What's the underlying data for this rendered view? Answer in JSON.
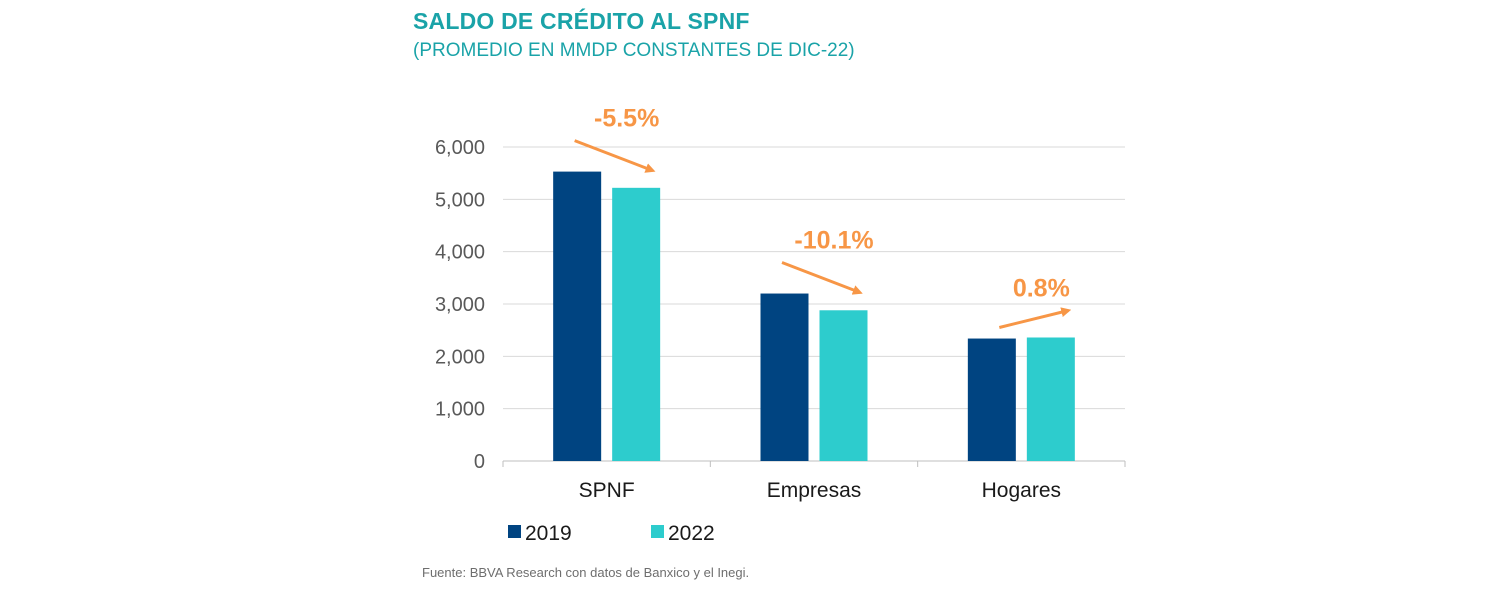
{
  "header": {
    "title": "SALDO DE CRÉDITO AL SPNF",
    "subtitle": "(PROMEDIO EN MMDP CONSTANTES DE DIC-22)"
  },
  "footer": {
    "source": "Fuente: BBVA Research con datos de Banxico y el Inegi."
  },
  "colors": {
    "series_2019": "#004481",
    "series_2022": "#2dcccd",
    "annotation": "#f79646",
    "title": "#1aa3a8",
    "grid": "#d9d9d9"
  },
  "chart_data": {
    "type": "bar",
    "title": "SALDO DE CRÉDITO AL SPNF",
    "subtitle": "(PROMEDIO EN MMDP CONSTANTES DE DIC-22)",
    "categories": [
      "SPNF",
      "Empresas",
      "Hogares"
    ],
    "series": [
      {
        "name": "2019",
        "values": [
          5530,
          3200,
          2340
        ]
      },
      {
        "name": "2022",
        "values": [
          5220,
          2880,
          2360
        ]
      }
    ],
    "ylim": [
      0,
      6000
    ],
    "yticks": [
      0,
      1000,
      2000,
      3000,
      4000,
      5000,
      6000
    ],
    "ytick_labels": [
      "0",
      "1,000",
      "2,000",
      "3,000",
      "4,000",
      "5,000",
      "6,000"
    ],
    "xlabel": "",
    "ylabel": "",
    "grid": true,
    "legend_position": "bottom-left",
    "annotations": [
      {
        "category": "SPNF",
        "text": "-5.5%",
        "direction": "down"
      },
      {
        "category": "Empresas",
        "text": "-10.1%",
        "direction": "down"
      },
      {
        "category": "Hogares",
        "text": "0.8%",
        "direction": "up"
      }
    ]
  }
}
